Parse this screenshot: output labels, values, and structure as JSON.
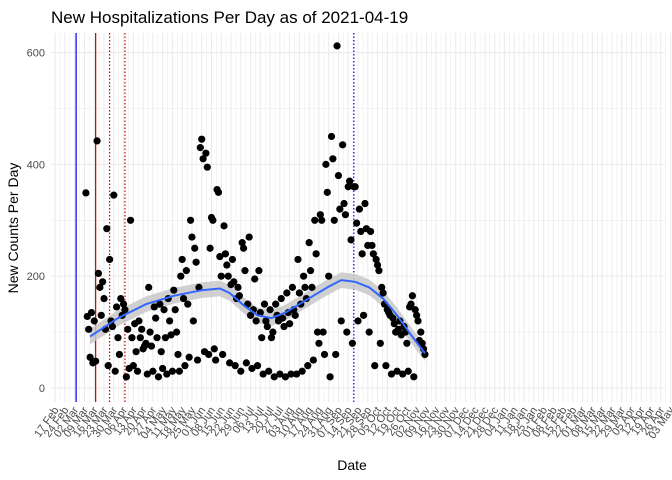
{
  "chart_data": {
    "type": "scatter",
    "title": "New Hospitalizations Per Day as of 2021-04-19",
    "xlabel": "Date",
    "ylabel": "New Counts Per Day",
    "ylim": [
      -25,
      635
    ],
    "yticks": [
      0,
      200,
      400,
      600
    ],
    "grid": true,
    "x_ticks": [
      "17 Feb",
      "24 Feb",
      "02 Mar",
      "09 Mar",
      "16 Mar",
      "23 Mar",
      "30 Mar",
      "06 Apr",
      "13 Apr",
      "20 Apr",
      "27 Apr",
      "04 May",
      "11 May",
      "18 May",
      "25 May",
      "01 Jun",
      "08 Jun",
      "15 Jun",
      "22 Jun",
      "29 Jun",
      "06 Jul",
      "13 Jul",
      "20 Jul",
      "27 Jul",
      "03 Aug",
      "10 Aug",
      "17 Aug",
      "24 Aug",
      "31 Aug",
      "07 Sep",
      "14 Sep",
      "21 Sep",
      "28 Sep",
      "05 Oct",
      "12 Oct",
      "19 Oct",
      "26 Oct",
      "02 Nov",
      "09 Nov",
      "16 Nov",
      "23 Nov",
      "30 Nov",
      "07 Dec",
      "14 Dec",
      "21 Dec",
      "28 Dec",
      "04 Jan",
      "11 Jan",
      "18 Jan",
      "25 Jan",
      "01 Feb",
      "08 Feb",
      "15 Feb",
      "22 Feb",
      "01 Mar",
      "08 Mar",
      "15 Mar",
      "22 Mar",
      "29 Mar",
      "05 Apr",
      "12 Apr",
      "19 Apr",
      "26 Apr",
      "03 May"
    ],
    "series": [
      {
        "values": [
          [
            22,
            349
          ],
          [
            23,
            128
          ],
          [
            24,
            105
          ],
          [
            25,
            55
          ],
          [
            26,
            135
          ],
          [
            27,
            45
          ],
          [
            28,
            120
          ],
          [
            29,
            48
          ],
          [
            30,
            442
          ],
          [
            31,
            205
          ],
          [
            32,
            180
          ],
          [
            33,
            130
          ],
          [
            34,
            190
          ],
          [
            35,
            160
          ],
          [
            36,
            105
          ],
          [
            37,
            285
          ],
          [
            38,
            40
          ],
          [
            39,
            230
          ],
          [
            40,
            120
          ],
          [
            41,
            110
          ],
          [
            42,
            345
          ],
          [
            43,
            30
          ],
          [
            44,
            145
          ],
          [
            45,
            90
          ],
          [
            46,
            60
          ],
          [
            47,
            160
          ],
          [
            48,
            130
          ],
          [
            49,
            150
          ],
          [
            50,
            140
          ],
          [
            51,
            20
          ],
          [
            52,
            105
          ],
          [
            53,
            35
          ],
          [
            54,
            300
          ],
          [
            55,
            90
          ],
          [
            56,
            40
          ],
          [
            57,
            115
          ],
          [
            58,
            65
          ],
          [
            59,
            30
          ],
          [
            60,
            120
          ],
          [
            61,
            90
          ],
          [
            62,
            105
          ],
          [
            63,
            70
          ],
          [
            64,
            75
          ],
          [
            65,
            80
          ],
          [
            66,
            25
          ],
          [
            67,
            180
          ],
          [
            68,
            100
          ],
          [
            69,
            75
          ],
          [
            70,
            30
          ],
          [
            71,
            145
          ],
          [
            72,
            125
          ],
          [
            73,
            90
          ],
          [
            74,
            20
          ],
          [
            75,
            150
          ],
          [
            76,
            65
          ],
          [
            77,
            35
          ],
          [
            78,
            140
          ],
          [
            79,
            90
          ],
          [
            80,
            25
          ],
          [
            81,
            160
          ],
          [
            82,
            120
          ],
          [
            83,
            95
          ],
          [
            84,
            30
          ],
          [
            85,
            175
          ],
          [
            86,
            140
          ],
          [
            87,
            100
          ],
          [
            88,
            60
          ],
          [
            89,
            30
          ],
          [
            90,
            200
          ],
          [
            91,
            230
          ],
          [
            92,
            160
          ],
          [
            93,
            40
          ],
          [
            94,
            210
          ],
          [
            95,
            150
          ],
          [
            96,
            55
          ],
          [
            97,
            300
          ],
          [
            98,
            270
          ],
          [
            99,
            120
          ],
          [
            100,
            250
          ],
          [
            101,
            225
          ],
          [
            102,
            50
          ],
          [
            103,
            180
          ],
          [
            104,
            430
          ],
          [
            105,
            445
          ],
          [
            106,
            410
          ],
          [
            107,
            65
          ],
          [
            108,
            420
          ],
          [
            109,
            395
          ],
          [
            110,
            60
          ],
          [
            111,
            250
          ],
          [
            112,
            305
          ],
          [
            113,
            300
          ],
          [
            114,
            70
          ],
          [
            115,
            50
          ],
          [
            116,
            355
          ],
          [
            117,
            350
          ],
          [
            118,
            235
          ],
          [
            119,
            200
          ],
          [
            120,
            60
          ],
          [
            121,
            290
          ],
          [
            122,
            240
          ],
          [
            123,
            220
          ],
          [
            124,
            200
          ],
          [
            125,
            45
          ],
          [
            126,
            185
          ],
          [
            127,
            230
          ],
          [
            128,
            190
          ],
          [
            129,
            40
          ],
          [
            130,
            160
          ],
          [
            131,
            180
          ],
          [
            132,
            165
          ],
          [
            133,
            30
          ],
          [
            134,
            260
          ],
          [
            135,
            250
          ],
          [
            136,
            210
          ],
          [
            137,
            45
          ],
          [
            138,
            150
          ],
          [
            139,
            270
          ],
          [
            140,
            130
          ],
          [
            141,
            35
          ],
          [
            142,
            140
          ],
          [
            143,
            195
          ],
          [
            144,
            120
          ],
          [
            145,
            40
          ],
          [
            146,
            210
          ],
          [
            147,
            135
          ],
          [
            148,
            90
          ],
          [
            149,
            25
          ],
          [
            150,
            150
          ],
          [
            151,
            120
          ],
          [
            152,
            110
          ],
          [
            153,
            30
          ],
          [
            154,
            140
          ],
          [
            155,
            90
          ],
          [
            156,
            100
          ],
          [
            157,
            20
          ],
          [
            158,
            150
          ],
          [
            159,
            130
          ],
          [
            160,
            120
          ],
          [
            161,
            25
          ],
          [
            162,
            160
          ],
          [
            163,
            125
          ],
          [
            164,
            110
          ],
          [
            165,
            20
          ],
          [
            166,
            170
          ],
          [
            167,
            135
          ],
          [
            168,
            115
          ],
          [
            169,
            25
          ],
          [
            170,
            180
          ],
          [
            171,
            140
          ],
          [
            172,
            130
          ],
          [
            173,
            25
          ],
          [
            174,
            230
          ],
          [
            175,
            170
          ],
          [
            176,
            150
          ],
          [
            177,
            30
          ],
          [
            178,
            200
          ],
          [
            179,
            180
          ],
          [
            180,
            160
          ],
          [
            181,
            40
          ],
          [
            182,
            260
          ],
          [
            183,
            210
          ],
          [
            184,
            180
          ],
          [
            185,
            50
          ],
          [
            186,
            300
          ],
          [
            187,
            240
          ],
          [
            188,
            100
          ],
          [
            189,
            80
          ],
          [
            190,
            310
          ],
          [
            191,
            300
          ],
          [
            192,
            100
          ],
          [
            193,
            60
          ],
          [
            194,
            400
          ],
          [
            195,
            350
          ],
          [
            196,
            200
          ],
          [
            197,
            20
          ],
          [
            198,
            450
          ],
          [
            199,
            410
          ],
          [
            200,
            300
          ],
          [
            201,
            60
          ],
          [
            202,
            612
          ],
          [
            203,
            380
          ],
          [
            204,
            320
          ],
          [
            205,
            120
          ],
          [
            206,
            435
          ],
          [
            207,
            330
          ],
          [
            208,
            310
          ],
          [
            209,
            100
          ],
          [
            210,
            360
          ],
          [
            211,
            370
          ],
          [
            212,
            265
          ],
          [
            213,
            80
          ],
          [
            214,
            360
          ],
          [
            215,
            360
          ],
          [
            216,
            295
          ],
          [
            217,
            120
          ],
          [
            218,
            320
          ],
          [
            219,
            280
          ],
          [
            220,
            240
          ],
          [
            221,
            130
          ],
          [
            222,
            330
          ],
          [
            223,
            285
          ],
          [
            224,
            255
          ],
          [
            225,
            100
          ],
          [
            226,
            280
          ],
          [
            227,
            255
          ],
          [
            228,
            240
          ],
          [
            229,
            40
          ],
          [
            230,
            230
          ],
          [
            231,
            220
          ],
          [
            232,
            210
          ],
          [
            233,
            80
          ],
          [
            234,
            180
          ],
          [
            235,
            170
          ],
          [
            236,
            150
          ],
          [
            237,
            40
          ],
          [
            238,
            140
          ],
          [
            239,
            135
          ],
          [
            240,
            130
          ],
          [
            241,
            25
          ],
          [
            242,
            125
          ],
          [
            243,
            115
          ],
          [
            244,
            100
          ],
          [
            245,
            30
          ],
          [
            246,
            105
          ],
          [
            247,
            120
          ],
          [
            248,
            95
          ],
          [
            249,
            25
          ],
          [
            250,
            110
          ],
          [
            251,
            100
          ],
          [
            252,
            80
          ],
          [
            253,
            30
          ],
          [
            254,
            145
          ],
          [
            255,
            150
          ],
          [
            256,
            165
          ],
          [
            257,
            20
          ],
          [
            258,
            140
          ],
          [
            259,
            130
          ],
          [
            260,
            120
          ],
          [
            261,
            85
          ],
          [
            262,
            100
          ],
          [
            263,
            80
          ],
          [
            264,
            70
          ],
          [
            265,
            60
          ]
        ]
      }
    ],
    "smooth": [
      [
        25,
        92
      ],
      [
        45,
        125
      ],
      [
        65,
        150
      ],
      [
        85,
        165
      ],
      [
        105,
        175
      ],
      [
        118,
        178
      ],
      [
        125,
        170
      ],
      [
        135,
        148
      ],
      [
        145,
        130
      ],
      [
        155,
        125
      ],
      [
        165,
        135
      ],
      [
        175,
        150
      ],
      [
        185,
        165
      ],
      [
        195,
        180
      ],
      [
        205,
        193
      ],
      [
        215,
        190
      ],
      [
        225,
        180
      ],
      [
        235,
        160
      ],
      [
        245,
        130
      ],
      [
        255,
        95
      ],
      [
        265,
        62
      ]
    ],
    "vlines": [
      {
        "x": 15,
        "color": "#0000ff",
        "style": "solid"
      },
      {
        "x": 29,
        "color": "#cc0000",
        "style": "solid"
      },
      {
        "x": 39,
        "color": "#cc0000",
        "style": "dotted"
      },
      {
        "x": 50,
        "color": "#cc0000",
        "style": "dotted"
      },
      {
        "x": 214,
        "color": "#0000ff",
        "style": "dotted"
      }
    ],
    "colors": {
      "points": "#000000",
      "smooth": "#3366ff",
      "band": "#c8c8c8",
      "grid": "#ebebeb"
    }
  }
}
